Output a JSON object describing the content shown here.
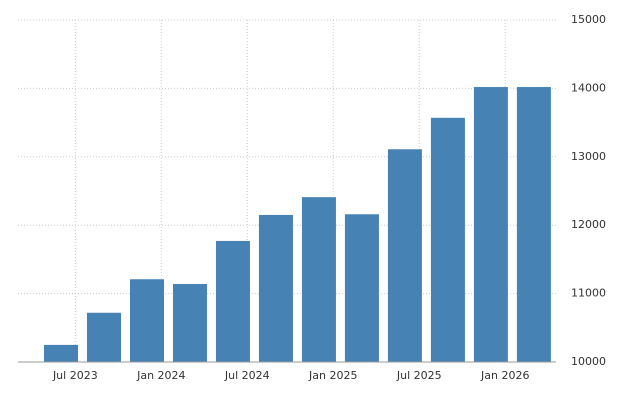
{
  "chart_data": {
    "type": "bar",
    "x": [
      "2023-06",
      "2023-09",
      "2023-12",
      "2024-03",
      "2024-06",
      "2024-09",
      "2024-12",
      "2025-03",
      "2025-06",
      "2025-09",
      "2025-12",
      "2026-03"
    ],
    "values": [
      10250,
      10720,
      11210,
      11140,
      11770,
      12150,
      12410,
      12160,
      13110,
      13570,
      14020,
      14020
    ],
    "color": "#4682b4",
    "ylim": [
      10000,
      15000
    ],
    "yticks": [
      10000,
      11000,
      12000,
      13000,
      14000,
      15000
    ],
    "xticks": [
      {
        "value": "2023-07",
        "label": "Jul 2023"
      },
      {
        "value": "2024-01",
        "label": "Jan 2024"
      },
      {
        "value": "2024-07",
        "label": "Jul 2024"
      },
      {
        "value": "2025-01",
        "label": "Jan 2025"
      },
      {
        "value": "2025-07",
        "label": "Jul 2025"
      },
      {
        "value": "2026-01",
        "label": "Jan 2026"
      }
    ],
    "grid": true
  }
}
